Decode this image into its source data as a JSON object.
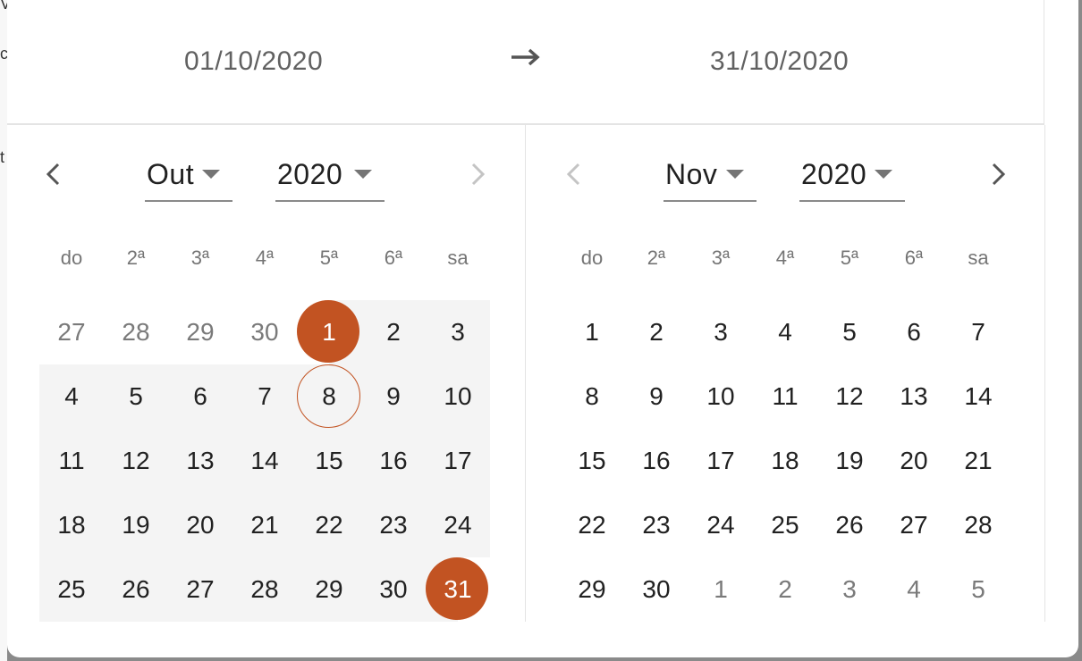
{
  "background": {
    "edge_glyphs": [
      "V",
      "c",
      "t"
    ]
  },
  "header": {
    "start_date": "01/10/2020",
    "end_date": "31/10/2020",
    "arrow_icon": "arrow-right-icon"
  },
  "colors": {
    "accent": "#c25322",
    "range_bg": "#f4f4f4"
  },
  "left": {
    "month": "Out",
    "year": "2020",
    "weekdays": [
      "do",
      "2ª",
      "3ª",
      "4ª",
      "5ª",
      "6ª",
      "sa"
    ],
    "days": [
      [
        "27",
        "28",
        "29",
        "30",
        "1",
        "2",
        "3"
      ],
      [
        "4",
        "5",
        "6",
        "7",
        "8",
        "9",
        "10"
      ],
      [
        "11",
        "12",
        "13",
        "14",
        "15",
        "16",
        "17"
      ],
      [
        "18",
        "19",
        "20",
        "21",
        "22",
        "23",
        "24"
      ],
      [
        "25",
        "26",
        "27",
        "28",
        "29",
        "30",
        "31"
      ]
    ],
    "muted_first_row": 4,
    "selected": [
      "1",
      "31"
    ],
    "today": "8"
  },
  "right": {
    "month": "Nov",
    "year": "2020",
    "weekdays": [
      "do",
      "2ª",
      "3ª",
      "4ª",
      "5ª",
      "6ª",
      "sa"
    ],
    "days": [
      [
        "1",
        "2",
        "3",
        "4",
        "5",
        "6",
        "7"
      ],
      [
        "8",
        "9",
        "10",
        "11",
        "12",
        "13",
        "14"
      ],
      [
        "15",
        "16",
        "17",
        "18",
        "19",
        "20",
        "21"
      ],
      [
        "22",
        "23",
        "24",
        "25",
        "26",
        "27",
        "28"
      ],
      [
        "29",
        "30",
        "1",
        "2",
        "3",
        "4",
        "5"
      ]
    ],
    "muted_last_row_from": 2
  }
}
